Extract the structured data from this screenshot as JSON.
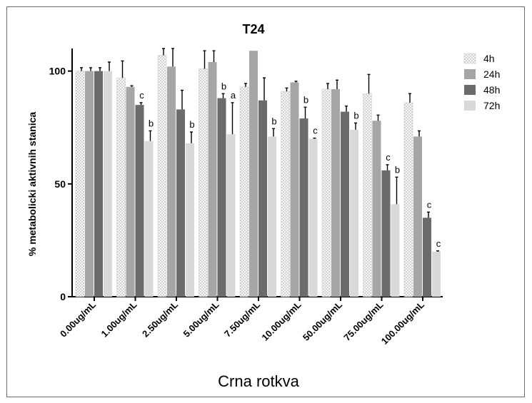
{
  "chart_data": {
    "type": "bar",
    "title": "T24",
    "xlabel": "Crna rotkva",
    "ylabel": "% metabolicki aktivnih stanica",
    "ylim": [
      0,
      110
    ],
    "yticks": [
      0,
      50,
      100
    ],
    "categories": [
      "0.00ug/mL",
      "1.00ug/mL",
      "2.50ug/mL",
      "5.00ug/mL",
      "7.50ug/mL",
      "10.00ug/mL",
      "50.00ug/mL",
      "75.00ug/mL",
      "100.00ug/mL"
    ],
    "series": [
      {
        "name": "4h",
        "color": "#f2f2f2",
        "pattern": "dotted",
        "values": [
          100,
          97,
          107,
          101,
          93,
          91,
          92,
          90,
          86
        ],
        "errors": [
          1.5,
          7.5,
          3,
          8,
          1.5,
          1.5,
          2.5,
          8.5,
          4
        ]
      },
      {
        "name": "24h",
        "color": "#a6a6a6",
        "values": [
          100,
          93,
          102,
          104,
          109,
          95,
          92,
          78,
          71
        ],
        "errors": [
          1.5,
          0.5,
          8,
          5,
          0,
          0.5,
          4,
          2.5,
          2.5
        ]
      },
      {
        "name": "48h",
        "color": "#6b6b6b",
        "values": [
          100,
          85,
          83,
          88,
          87,
          79,
          82,
          56,
          35
        ],
        "errors": [
          1.5,
          1,
          8.5,
          2,
          10,
          5,
          2.5,
          2.5,
          2.5
        ]
      },
      {
        "name": "72h",
        "color": "#d9d9d9",
        "values": [
          100,
          69,
          68,
          72,
          71,
          70,
          74,
          41,
          20
        ],
        "errors": [
          4,
          4.5,
          5,
          14,
          3.5,
          0.3,
          3,
          12,
          0.3
        ]
      }
    ],
    "annotations": [
      {
        "category": 1,
        "series": 2,
        "text": "c"
      },
      {
        "category": 1,
        "series": 3,
        "text": "b"
      },
      {
        "category": 2,
        "series": 3,
        "text": "b"
      },
      {
        "category": 3,
        "series": 2,
        "text": "b"
      },
      {
        "category": 3,
        "series": 3,
        "text": "a"
      },
      {
        "category": 4,
        "series": 3,
        "text": "b"
      },
      {
        "category": 5,
        "series": 2,
        "text": "b"
      },
      {
        "category": 5,
        "series": 3,
        "text": "c"
      },
      {
        "category": 6,
        "series": 3,
        "text": "b"
      },
      {
        "category": 7,
        "series": 2,
        "text": "c"
      },
      {
        "category": 7,
        "series": 3,
        "text": "b"
      },
      {
        "category": 8,
        "series": 2,
        "text": "c"
      },
      {
        "category": 8,
        "series": 3,
        "text": "c"
      }
    ],
    "legend_position": "right"
  }
}
